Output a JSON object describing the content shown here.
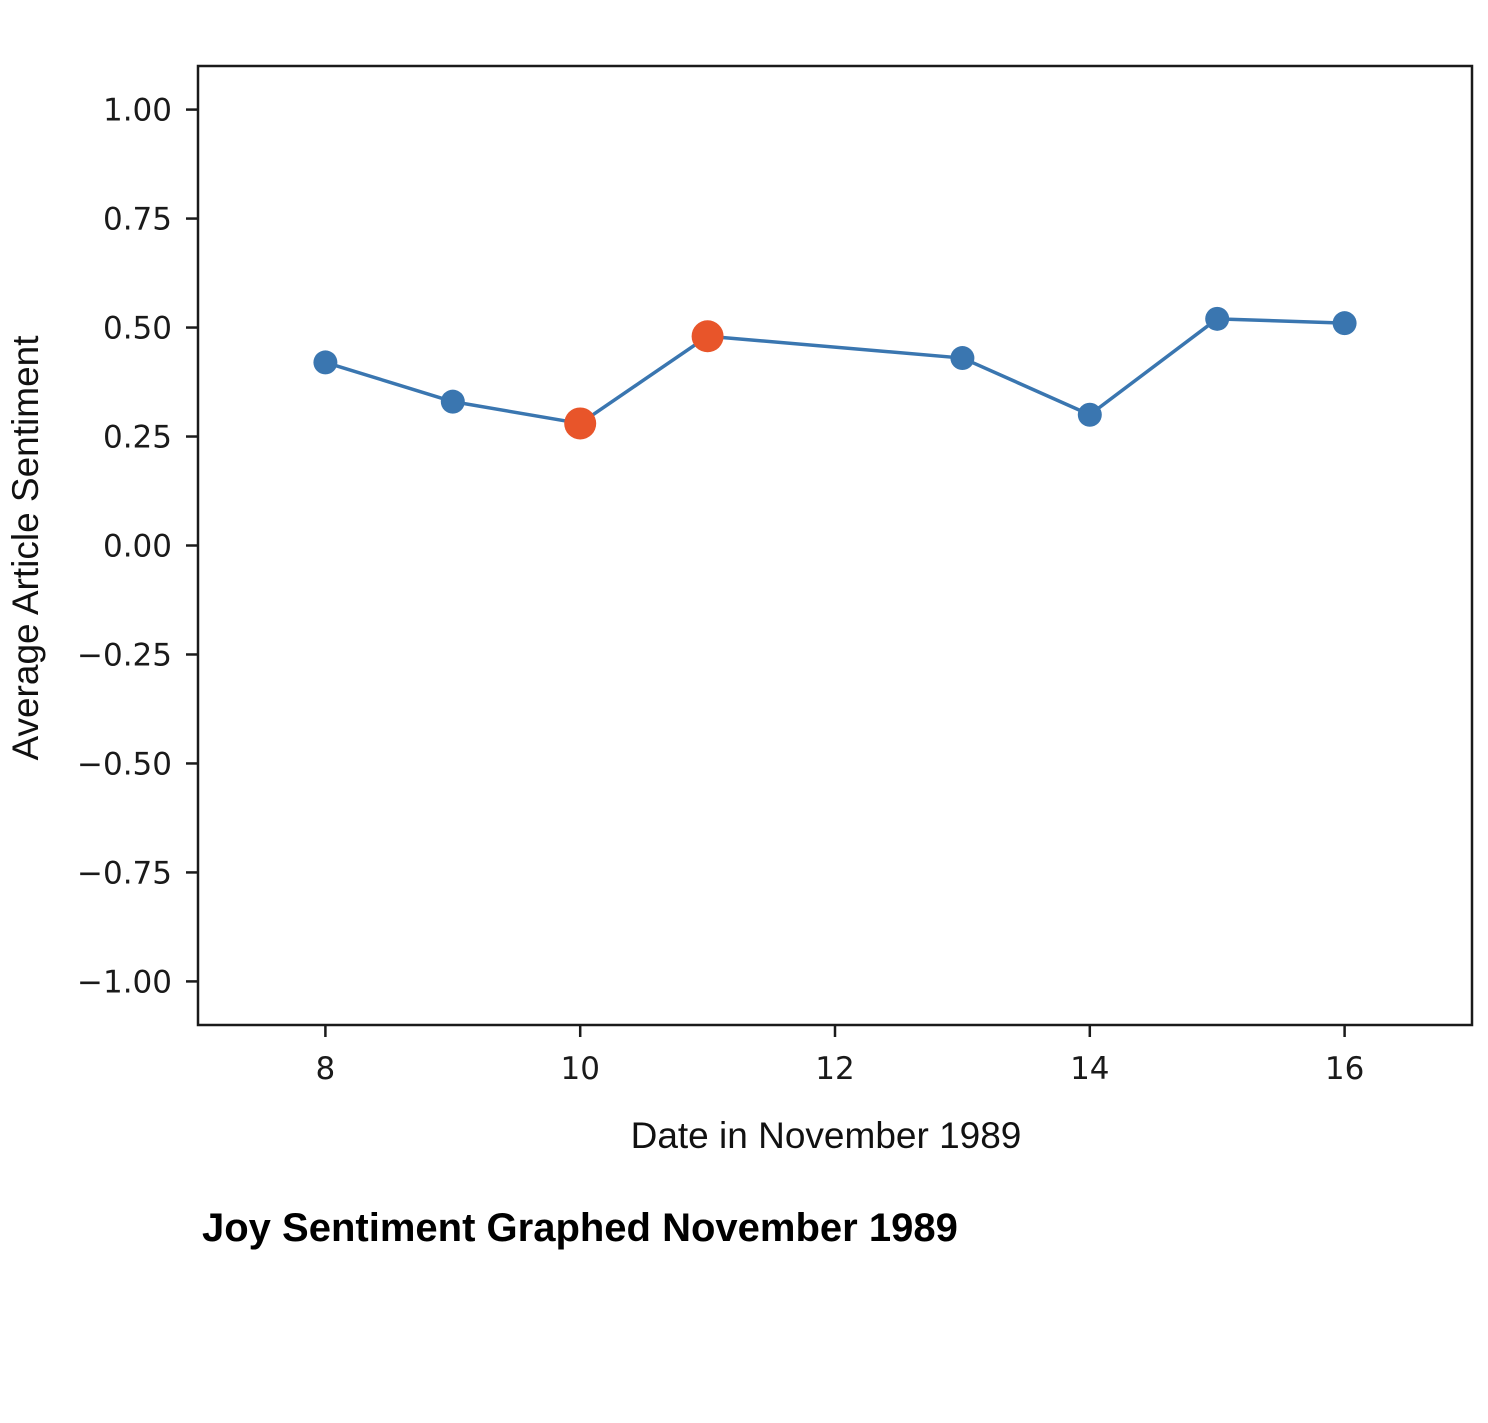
{
  "caption": "Joy Sentiment Graphed November 1989",
  "chart_data": {
    "type": "line",
    "title": "",
    "xlabel": "Date in November 1989",
    "ylabel": "Average Article Sentiment",
    "xlim": [
      7,
      17
    ],
    "ylim": [
      -1.1,
      1.1
    ],
    "xticks": [
      8,
      10,
      12,
      14,
      16
    ],
    "yticks": [
      1.0,
      0.75,
      0.5,
      0.25,
      0.0,
      -0.25,
      -0.5,
      -0.75,
      -1.0
    ],
    "ytick_labels": [
      "1.00",
      "0.75",
      "0.50",
      "0.25",
      "0.00",
      "−0.25",
      "−0.50",
      "−0.75",
      "−1.00"
    ],
    "grid": false,
    "series": [
      {
        "color": "#3a76b0",
        "x": [
          8,
          9,
          10,
          11,
          13,
          14,
          15,
          16
        ],
        "y": [
          0.42,
          0.33,
          0.28,
          0.48,
          0.43,
          0.3,
          0.52,
          0.51
        ]
      }
    ],
    "highlighted_points": {
      "color": "#e8552a",
      "x": [
        10,
        11
      ],
      "y": [
        0.28,
        0.48
      ]
    }
  }
}
